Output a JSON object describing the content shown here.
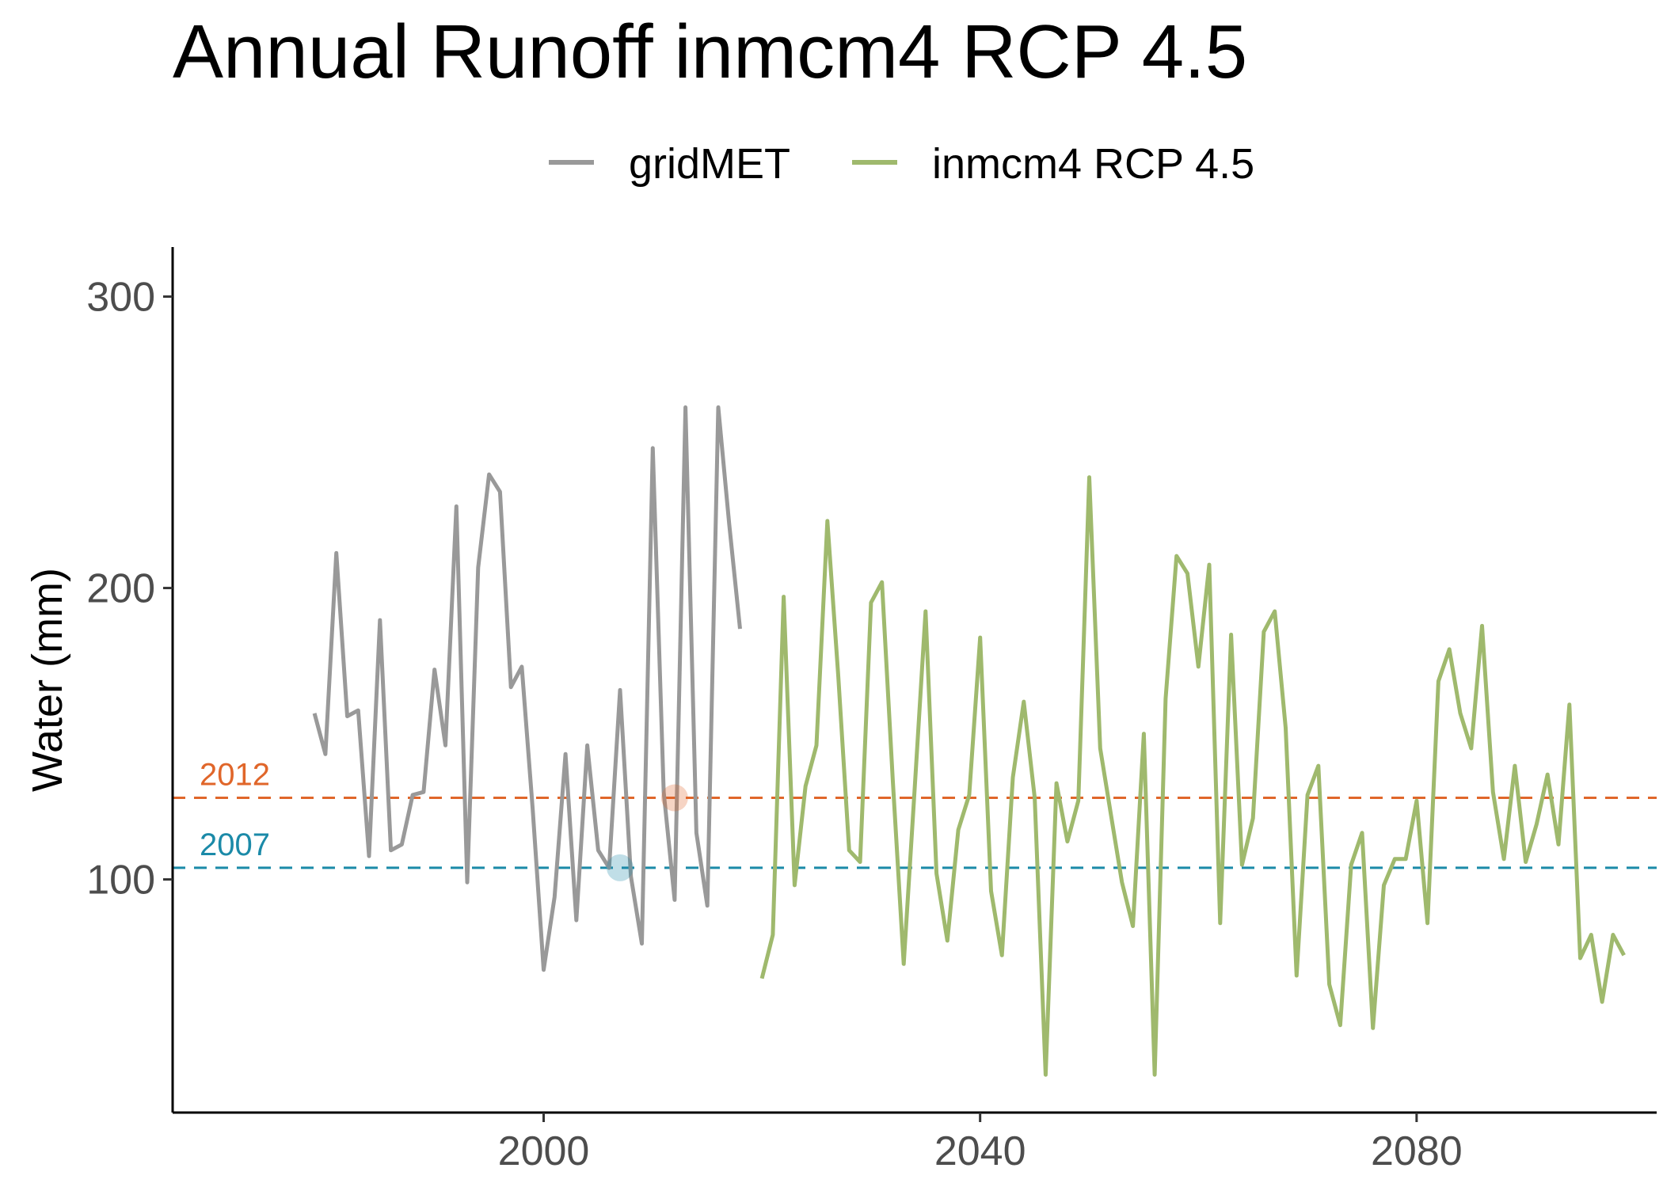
{
  "chart_data": {
    "type": "line",
    "title": "Annual Runoff inmcm4 RCP 4.5",
    "xlabel": "",
    "ylabel": "Water (mm)",
    "xlim": [
      1966,
      2102
    ],
    "ylim": [
      20,
      317
    ],
    "x_ticks": [
      2000,
      2040,
      2080
    ],
    "y_ticks": [
      100,
      200,
      300
    ],
    "legend": {
      "position": "top",
      "entries": [
        "gridMET",
        "inmcm4 RCP 4.5"
      ]
    },
    "grid": false,
    "series": [
      {
        "name": "gridMET",
        "color": "#999999",
        "x": [
          1979,
          1980,
          1981,
          1982,
          1983,
          1984,
          1985,
          1986,
          1987,
          1988,
          1989,
          1990,
          1991,
          1992,
          1993,
          1994,
          1995,
          1996,
          1997,
          1998,
          1999,
          2000,
          2001,
          2002,
          2003,
          2004,
          2005,
          2006,
          2007,
          2008,
          2009,
          2010,
          2011,
          2012,
          2013,
          2014,
          2015,
          2016,
          2017,
          2018
        ],
        "values": [
          157,
          143,
          212,
          156,
          158,
          108,
          189,
          110,
          112,
          129,
          130,
          172,
          146,
          228,
          99,
          207,
          239,
          233,
          166,
          173,
          124,
          69,
          94,
          143,
          86,
          146,
          110,
          104,
          165,
          101,
          78,
          248,
          130,
          93,
          262,
          116,
          91,
          262,
          222,
          186
        ]
      },
      {
        "name": "inmcm4 RCP 4.5",
        "color": "#9fb96d",
        "x": [
          2020,
          2021,
          2022,
          2023,
          2024,
          2025,
          2026,
          2027,
          2028,
          2029,
          2030,
          2031,
          2032,
          2033,
          2034,
          2035,
          2036,
          2037,
          2038,
          2039,
          2040,
          2041,
          2042,
          2043,
          2044,
          2045,
          2046,
          2047,
          2048,
          2049,
          2050,
          2051,
          2052,
          2053,
          2054,
          2055,
          2056,
          2057,
          2058,
          2059,
          2060,
          2061,
          2062,
          2063,
          2064,
          2065,
          2066,
          2067,
          2068,
          2069,
          2070,
          2071,
          2072,
          2073,
          2074,
          2075,
          2076,
          2077,
          2078,
          2079,
          2080,
          2081,
          2082,
          2083,
          2084,
          2085,
          2086,
          2087,
          2088,
          2089,
          2090,
          2091,
          2092,
          2093,
          2094,
          2095,
          2096,
          2097,
          2098,
          2099
        ],
        "values": [
          66,
          81,
          197,
          98,
          132,
          146,
          223,
          170,
          110,
          106,
          195,
          202,
          134,
          71,
          131,
          192,
          102,
          79,
          117,
          129,
          183,
          96,
          74,
          135,
          161,
          128,
          33,
          133,
          113,
          127,
          238,
          145,
          122,
          99,
          84,
          150,
          33,
          162,
          211,
          205,
          173,
          208,
          85,
          184,
          105,
          121,
          185,
          192,
          152,
          67,
          129,
          139,
          64,
          50,
          105,
          116,
          49,
          98,
          107,
          107,
          127,
          85,
          168,
          179,
          157,
          145,
          187,
          130,
          107,
          139,
          106,
          119,
          136,
          112,
          160,
          73,
          81,
          58,
          81,
          74
        ]
      }
    ],
    "reference_lines": [
      {
        "label": "2012",
        "value": 128,
        "color": "#e0662a",
        "marker_x": 2012
      },
      {
        "label": "2007",
        "value": 104,
        "color": "#1b8aa8",
        "marker_x": 2007
      }
    ]
  }
}
